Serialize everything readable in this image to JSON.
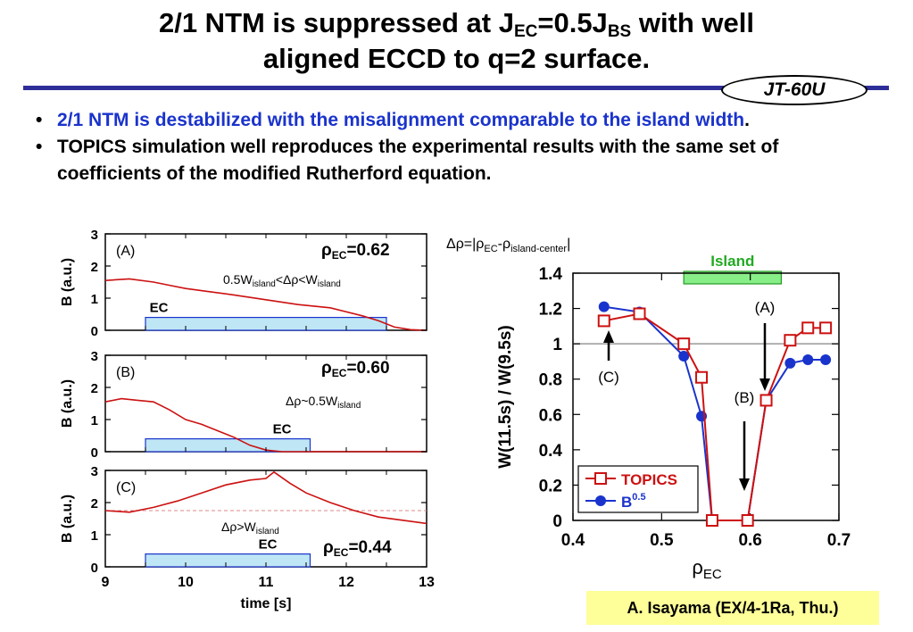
{
  "title": {
    "line1_a": "2/1 NTM is suppressed at J",
    "line1_sub1": "EC",
    "line1_b": "=0.5J",
    "line1_sub2": "BS",
    "line1_c": " with well",
    "line2": "aligned ECCD to q=2 surface."
  },
  "badge": "JT-60U",
  "bullets": [
    {
      "dot": "•",
      "text": "2/1 NTM is destabilized with the misalignment comparable to the island width",
      "tail": "."
    },
    {
      "dot": "•",
      "text": "TOPICS simulation well reproduces the experimental results with the same set of coefficients of the modified Rutherford equation."
    }
  ],
  "credit": "A. Isayama (EX/4-1Ra, Thu.)",
  "colors": {
    "red": "#cc1111",
    "blue": "#1a33cc",
    "ec_fill": "#bfe6f5",
    "ec_stroke": "#1a33cc",
    "island": "#88ee88",
    "ref_line": "#999999"
  },
  "chart_data": [
    {
      "type": "line",
      "panel": "(A)",
      "ylabel": "B (a.u.)",
      "y_ticks": [
        "0",
        "1",
        "2",
        "3"
      ],
      "ylim": [
        0,
        3
      ],
      "xlim": [
        9,
        13
      ],
      "rho_label": "ρ",
      "rho_sub": "EC",
      "rho_value": "=0.62",
      "cond_text": "0.5W",
      "cond_sub": "island",
      "cond_mid": "<Δρ<W",
      "cond_sub2": "island",
      "ec_label": "EC",
      "ec_window": [
        9.5,
        12.5
      ],
      "series": [
        {
          "x": [
            9.0,
            9.3,
            9.6,
            9.8,
            10.0,
            10.3,
            10.6,
            11.0,
            11.4,
            11.8,
            12.2,
            12.4,
            12.6,
            12.8,
            13.0
          ],
          "values": [
            1.55,
            1.6,
            1.5,
            1.4,
            1.3,
            1.2,
            1.1,
            0.95,
            0.8,
            0.7,
            0.45,
            0.3,
            0.1,
            0.02,
            0.0
          ]
        }
      ]
    },
    {
      "type": "line",
      "panel": "(B)",
      "ylabel": "B (a.u.)",
      "y_ticks": [
        "0",
        "1",
        "2",
        "3"
      ],
      "ylim": [
        0,
        3
      ],
      "xlim": [
        9,
        13
      ],
      "rho_label": "ρ",
      "rho_sub": "EC",
      "rho_value": "=0.60",
      "cond_text": "Δρ~0.5W",
      "cond_sub": "island",
      "ec_label": "EC",
      "ec_window": [
        9.5,
        11.55
      ],
      "series": [
        {
          "x": [
            9.0,
            9.2,
            9.4,
            9.6,
            9.8,
            10.0,
            10.2,
            10.4,
            10.6,
            10.8,
            11.0,
            11.2,
            11.4,
            11.6,
            13.0
          ],
          "values": [
            1.55,
            1.65,
            1.6,
            1.55,
            1.3,
            1.0,
            0.85,
            0.65,
            0.45,
            0.2,
            0.05,
            0.0,
            0.0,
            0.0,
            0.0
          ]
        }
      ]
    },
    {
      "type": "line",
      "panel": "(C)",
      "ylabel": "B (a.u.)",
      "y_ticks": [
        "0",
        "1",
        "2",
        "3"
      ],
      "ylim": [
        0,
        3
      ],
      "xlim": [
        9,
        13
      ],
      "xlabel": "time [s]",
      "x_ticks": [
        "9",
        "10",
        "11",
        "12",
        "13"
      ],
      "rho_label": "ρ",
      "rho_sub": "EC",
      "rho_value": "=0.44",
      "cond_text": "Δρ>W",
      "cond_sub": "island",
      "ec_label": "EC",
      "ec_window": [
        9.5,
        11.55
      ],
      "ref_level": 1.75,
      "series": [
        {
          "x": [
            9.0,
            9.3,
            9.6,
            9.9,
            10.2,
            10.5,
            10.8,
            11.0,
            11.1,
            11.3,
            11.5,
            11.8,
            12.1,
            12.4,
            12.7,
            13.0
          ],
          "values": [
            1.75,
            1.7,
            1.85,
            2.05,
            2.3,
            2.55,
            2.7,
            2.75,
            2.95,
            2.6,
            2.3,
            2.0,
            1.75,
            1.55,
            1.45,
            1.35
          ]
        }
      ]
    },
    {
      "type": "line",
      "title_top": "Δρ=|ρ",
      "title_sub1": "EC",
      "title_mid": "-ρ",
      "title_sub2": "island-center",
      "title_end": "|",
      "xlabel": "ρ",
      "xlabel_sub": "EC",
      "ylabel": "W(11.5s) / W(9.5s)",
      "xlim": [
        0.4,
        0.7
      ],
      "ylim": [
        0,
        1.4
      ],
      "x_ticks": [
        "0.4",
        "0.5",
        "0.6",
        "0.7"
      ],
      "y_ticks": [
        "0",
        "0.2",
        "0.4",
        "0.6",
        "0.8",
        "1",
        "1.2",
        "1.4"
      ],
      "island_label": "Island",
      "island_range": [
        0.525,
        0.635
      ],
      "annotations": [
        "(A)",
        "(B)",
        "(C)"
      ],
      "legend": [
        "TOPICS",
        "B"
      ],
      "legend_sup": "0.5",
      "series": [
        {
          "name": "TOPICS",
          "x": [
            0.435,
            0.475,
            0.525,
            0.545,
            0.557,
            0.597,
            0.618,
            0.645,
            0.665,
            0.685
          ],
          "values": [
            1.13,
            1.17,
            1.0,
            0.81,
            0.0,
            0.0,
            0.68,
            1.02,
            1.09,
            1.09
          ]
        },
        {
          "name": "B",
          "x": [
            0.435,
            0.475,
            0.525,
            0.545,
            0.557,
            0.597,
            0.618,
            0.645,
            0.665,
            0.685
          ],
          "values": [
            1.21,
            1.18,
            0.93,
            0.59,
            0.0,
            0.0,
            0.68,
            0.89,
            0.91,
            0.91
          ]
        }
      ]
    }
  ]
}
